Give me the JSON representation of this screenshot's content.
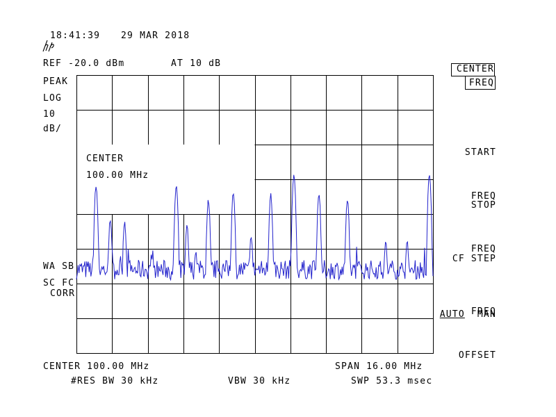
{
  "header": {
    "time": "18:41:39",
    "date": "29 MAR 2018",
    "ref_level": "REF -20.0 dBm",
    "attenuation": "AT 10 dB"
  },
  "left_annotations": {
    "detector": "PEAK",
    "scale": "LOG",
    "scale_value": "10",
    "scale_unit": "dB/",
    "flag1": "WA SB",
    "flag2": "SC FC",
    "flag3": "CORR"
  },
  "center_box": {
    "label": "CENTER",
    "value": "100.00 MHz"
  },
  "footer": {
    "center": "CENTER 100.00 MHz",
    "span": "SPAN 16.00 MHz",
    "rbw": "#RES BW 30 kHz",
    "vbw": "VBW 30 kHz",
    "sweep": "SWP 53.3 msec"
  },
  "softkeys": {
    "center_freq_line1": "CENTER",
    "center_freq_line2": "FREQ",
    "start_freq_line1": "START",
    "start_freq_line2": "FREQ",
    "stop_freq_line1": "STOP",
    "stop_freq_line2": "FREQ",
    "cf_step_line1": "CF STEP",
    "cf_step_auto": "AUTO",
    "cf_step_man": "MAN",
    "freq_offset_line1": "FREQ",
    "freq_offset_line2": "OFFSET"
  },
  "colors": {
    "trace": "#2222cc",
    "graticule": "#000000",
    "background": "#ffffff"
  },
  "chart_data": {
    "type": "line",
    "title": "",
    "xlabel": "",
    "ylabel": "",
    "x_unit": "MHz",
    "y_unit": "dBm",
    "xlim": [
      92.0,
      108.0
    ],
    "ylim": [
      -120.0,
      -20.0
    ],
    "grid": true,
    "noise_floor_dbm": -90,
    "series": [
      {
        "peaks": [
          {
            "x": 92.88,
            "y": -60
          },
          {
            "x": 93.52,
            "y": -72
          },
          {
            "x": 94.16,
            "y": -73
          },
          {
            "x": 95.36,
            "y": -85
          },
          {
            "x": 96.48,
            "y": -60
          },
          {
            "x": 96.96,
            "y": -74
          },
          {
            "x": 97.36,
            "y": -83
          },
          {
            "x": 97.92,
            "y": -65
          },
          {
            "x": 99.04,
            "y": -62
          },
          {
            "x": 99.84,
            "y": -78
          },
          {
            "x": 100.72,
            "y": -63
          },
          {
            "x": 101.76,
            "y": -56
          },
          {
            "x": 102.88,
            "y": -63
          },
          {
            "x": 104.16,
            "y": -65
          },
          {
            "x": 105.88,
            "y": -80
          },
          {
            "x": 106.84,
            "y": -80
          },
          {
            "x": 107.84,
            "y": -56
          }
        ]
      }
    ]
  }
}
